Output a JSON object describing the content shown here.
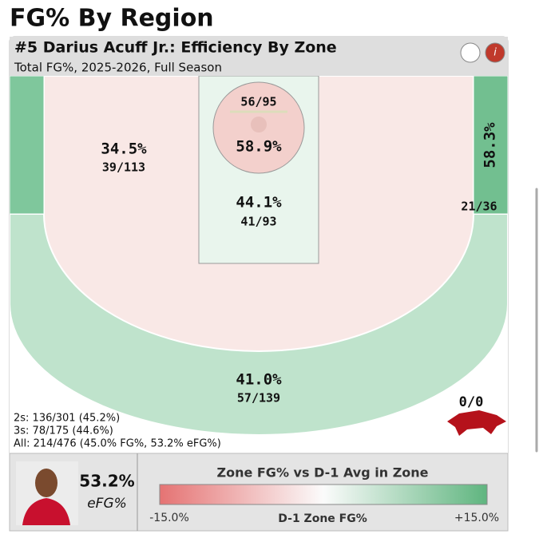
{
  "page_title": "FG% By Region",
  "card": {
    "title": "#5 Darius Acuff Jr.: Efficiency By Zone",
    "subtitle": "Total FG%, 2025-2026, Full Season"
  },
  "zones": {
    "rim": {
      "pct": "58.9%",
      "made_att": "56/95"
    },
    "paint": {
      "pct": "44.1%",
      "made_att": "41/93"
    },
    "mid": {
      "pct": "34.5%",
      "made_att": "39/113"
    },
    "right_corner": {
      "pct": "58.3%",
      "made_att": "21/36"
    },
    "above_break": {
      "pct": "41.0%",
      "made_att": "57/139"
    },
    "deep": {
      "made_att": "0/0"
    }
  },
  "summary": [
    "2s: 136/301 (45.2%)",
    "3s: 78/175 (44.6%)",
    "All: 214/476 (45.0% FG%, 53.2% eFG%)"
  ],
  "footer": {
    "efg_value": "53.2%",
    "efg_label": "eFG%",
    "legend_title": "Zone FG% vs D-1 Avg in Zone",
    "legend_min": "-15.0%",
    "legend_mid": "D-1 Zone FG%",
    "legend_max": "+15.0%"
  }
}
